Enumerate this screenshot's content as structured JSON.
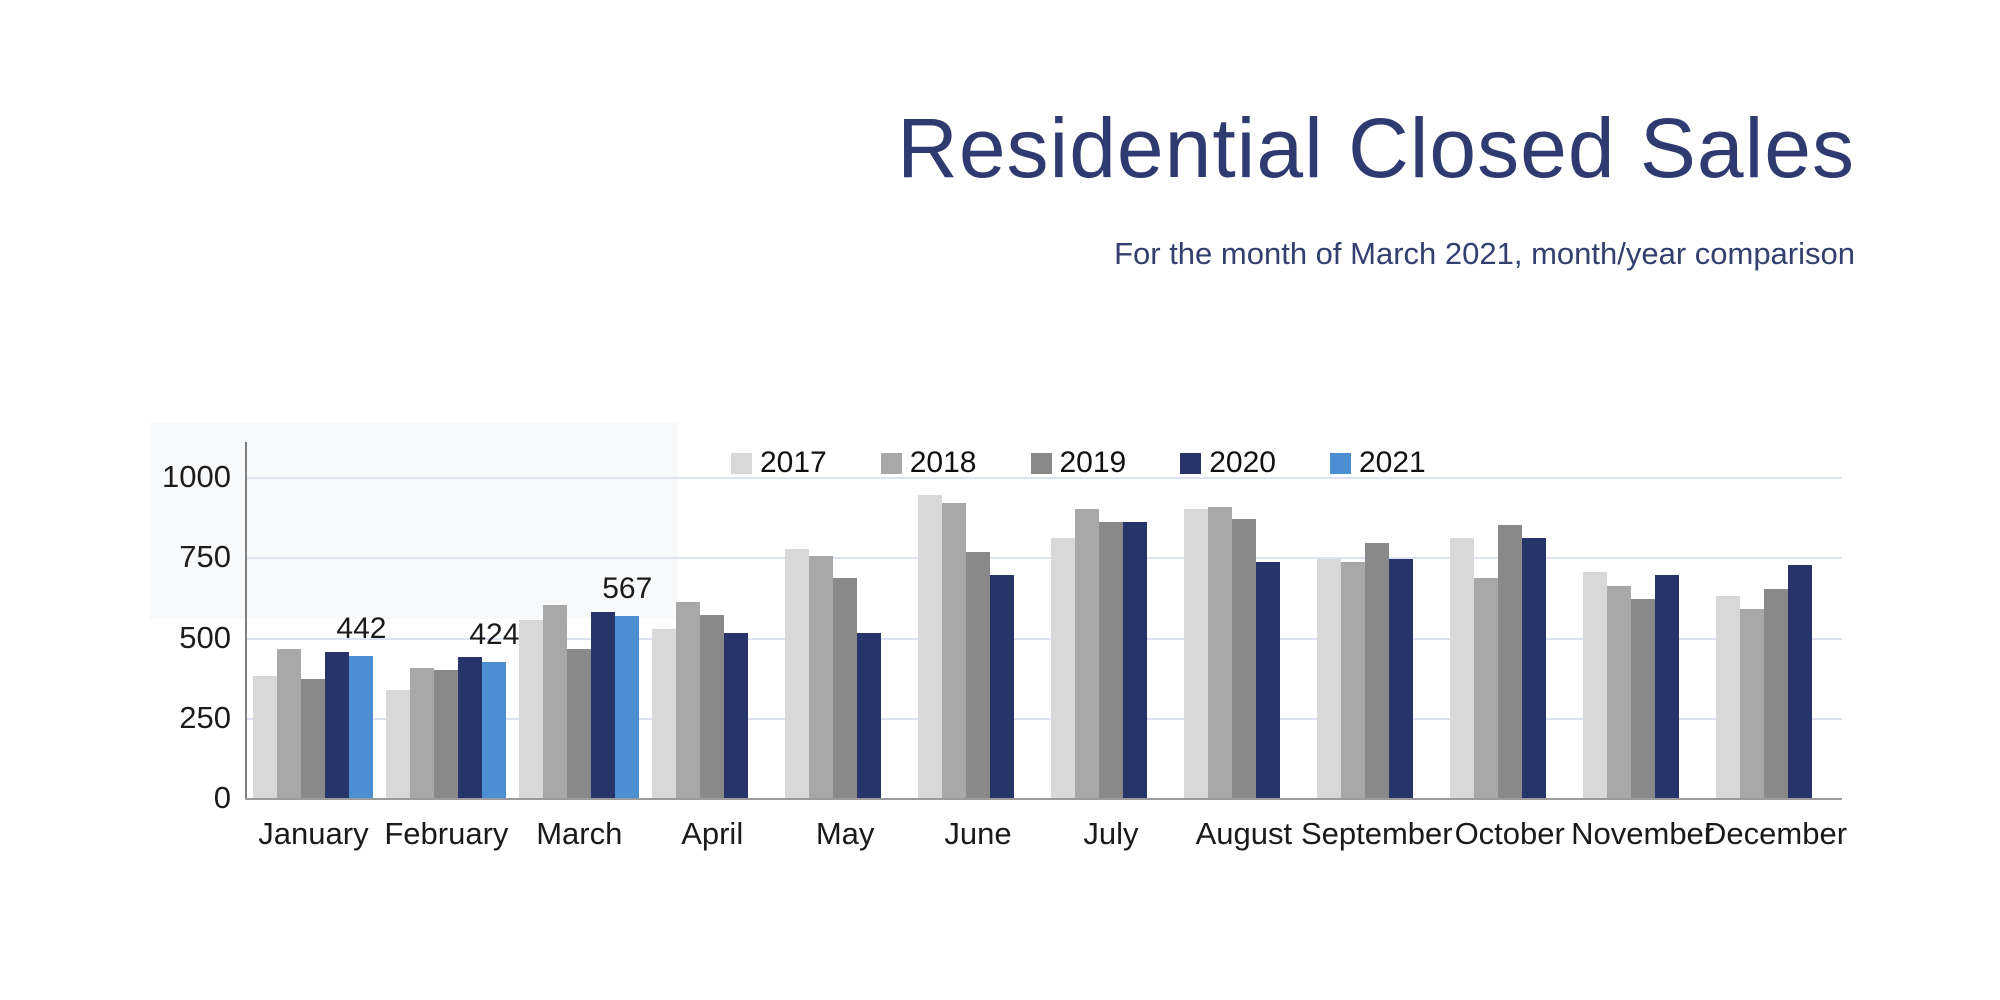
{
  "header": {
    "title": "Residential Closed Sales",
    "subtitle": "For the month of March 2021, month/year comparison",
    "title_color": "#2f3b70",
    "subtitle_color": "#33406f"
  },
  "chart_data": {
    "type": "bar",
    "title": "Residential Closed Sales",
    "subtitle": "For the month of March 2021, month/year comparison",
    "categories": [
      "January",
      "February",
      "March",
      "April",
      "May",
      "June",
      "July",
      "August",
      "September",
      "October",
      "November",
      "December"
    ],
    "series": [
      {
        "name": "2017",
        "color": "#d8d8d8",
        "values": [
          380,
          335,
          555,
          525,
          775,
          945,
          810,
          900,
          745,
          810,
          705,
          630
        ]
      },
      {
        "name": "2018",
        "color": "#a8a8a8",
        "values": [
          465,
          405,
          600,
          610,
          755,
          920,
          900,
          905,
          735,
          685,
          660,
          590
        ]
      },
      {
        "name": "2019",
        "color": "#898989",
        "values": [
          370,
          400,
          465,
          570,
          685,
          765,
          860,
          870,
          795,
          850,
          620,
          650
        ]
      },
      {
        "name": "2020",
        "color": "#263469",
        "values": [
          455,
          440,
          580,
          515,
          515,
          695,
          860,
          735,
          745,
          810,
          695,
          725
        ]
      },
      {
        "name": "2021",
        "color": "#4b8fd2",
        "values": [
          442,
          424,
          567,
          null,
          null,
          null,
          null,
          null,
          null,
          null,
          null,
          null
        ],
        "show_labels": true
      }
    ],
    "data_labels": [
      {
        "series": "2021",
        "category": "January",
        "value": 442
      },
      {
        "series": "2021",
        "category": "February",
        "value": 424
      },
      {
        "series": "2021",
        "category": "March",
        "value": 567
      }
    ],
    "ylim": [
      0,
      1000
    ],
    "yticks": [
      0,
      250,
      500,
      750,
      1000
    ],
    "grid": true,
    "gridline_color": "#dde3f2",
    "legend_position": "top-center",
    "xlabel": "",
    "ylabel": ""
  }
}
